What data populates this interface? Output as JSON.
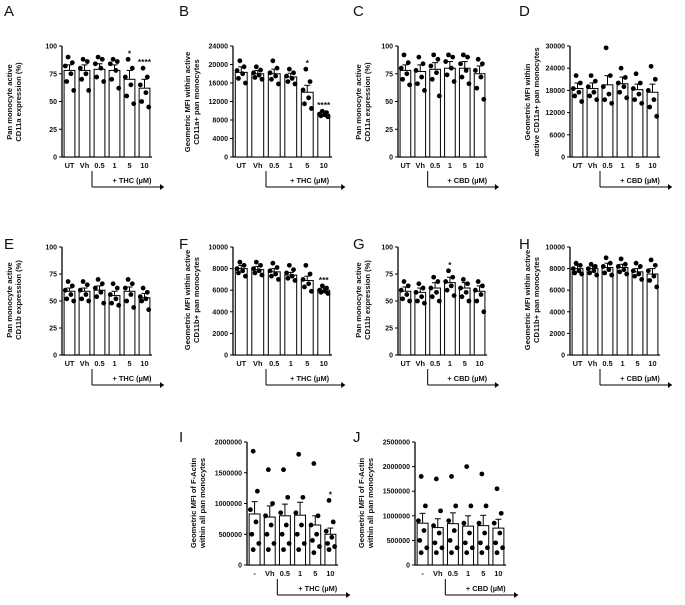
{
  "chart_data": [
    {
      "type": "bar",
      "panel": "A",
      "ylabel": "Pan monocyte active\nCD11a expression (%)",
      "yticks": [
        0,
        25,
        50,
        75,
        100
      ],
      "ylim": [
        0,
        100
      ],
      "categories": [
        "UT",
        "Vh",
        "0.5",
        "1",
        "5",
        "10"
      ],
      "treatment": "+ THC (µM)",
      "values": [
        78,
        78,
        79,
        78,
        70,
        62
      ],
      "errors": [
        5,
        5,
        5,
        5,
        8,
        8
      ],
      "points": [
        [
          90,
          85,
          82,
          75,
          68,
          60
        ],
        [
          88,
          86,
          80,
          75,
          70,
          60
        ],
        [
          90,
          88,
          84,
          80,
          72,
          68
        ],
        [
          88,
          86,
          84,
          78,
          70,
          62
        ],
        [
          88,
          80,
          72,
          65,
          55,
          48
        ],
        [
          80,
          72,
          65,
          58,
          50,
          45
        ]
      ],
      "annotations": [
        "",
        "",
        "",
        "",
        "*",
        "****"
      ]
    },
    {
      "type": "bar",
      "panel": "B",
      "ylabel": "Geometric MFI within active\nCD11a+ pan monocytes",
      "yticks": [
        0,
        4000,
        8000,
        12000,
        16000,
        20000,
        24000
      ],
      "ylim": [
        0,
        24000
      ],
      "categories": [
        "UT",
        "Vh",
        "0.5",
        "1",
        "5",
        "10"
      ],
      "treatment": "+ THC (µM)",
      "values": [
        18300,
        18000,
        18000,
        17300,
        14000,
        9200
      ],
      "errors": [
        1200,
        700,
        1000,
        800,
        1500,
        300
      ],
      "points": [
        [
          20800,
          19500,
          18700,
          18000,
          17000,
          16000
        ],
        [
          19500,
          18800,
          18200,
          17700,
          17200,
          16800
        ],
        [
          20800,
          19200,
          18200,
          17500,
          16800,
          15800
        ],
        [
          19000,
          18200,
          17500,
          17000,
          16300,
          15800
        ],
        [
          19000,
          16300,
          14500,
          12800,
          11500,
          10500
        ],
        [
          9900,
          9600,
          9300,
          9100,
          8900,
          8700
        ]
      ],
      "annotations": [
        "",
        "",
        "",
        "",
        "*",
        "****"
      ]
    },
    {
      "type": "bar",
      "panel": "C",
      "ylabel": "Pan monocyte active\nCD11a expression (%)",
      "yticks": [
        0,
        25,
        50,
        75,
        100
      ],
      "ylim": [
        0,
        100
      ],
      "categories": [
        "UT",
        "Vh",
        "0.5",
        "1",
        "5",
        "10"
      ],
      "treatment": "+ CBD (µM)",
      "values": [
        78,
        77,
        79,
        80,
        80,
        75
      ],
      "errors": [
        5,
        6,
        6,
        6,
        6,
        7
      ],
      "points": [
        [
          92,
          85,
          80,
          75,
          70,
          65
        ],
        [
          90,
          84,
          78,
          72,
          66,
          60
        ],
        [
          92,
          88,
          82,
          76,
          70,
          55
        ],
        [
          92,
          90,
          86,
          80,
          74,
          68
        ],
        [
          92,
          90,
          84,
          78,
          72,
          66
        ],
        [
          88,
          84,
          78,
          72,
          62,
          52
        ]
      ],
      "annotations": [
        "",
        "",
        "",
        "",
        "",
        ""
      ]
    },
    {
      "type": "bar",
      "panel": "D",
      "ylabel": "Geometric MFI within\nactive CD11a+ pan monocytes",
      "yticks": [
        0,
        6000,
        12000,
        18000,
        24000,
        30000
      ],
      "ylim": [
        0,
        30000
      ],
      "categories": [
        "UT",
        "Vh",
        "0.5",
        "1",
        "5",
        "10"
      ],
      "treatment": "+ CBD (µM)",
      "values": [
        18500,
        18500,
        19500,
        19800,
        18200,
        17500
      ],
      "errors": [
        1500,
        1500,
        2500,
        1800,
        1500,
        2200
      ],
      "points": [
        [
          22000,
          20000,
          18500,
          17500,
          16500,
          15000
        ],
        [
          22000,
          20500,
          19000,
          17500,
          16500,
          15500
        ],
        [
          29500,
          22000,
          19000,
          17000,
          15500,
          14500
        ],
        [
          24000,
          21500,
          20000,
          19000,
          17500,
          16000
        ],
        [
          22500,
          20000,
          18500,
          17000,
          15500,
          14500
        ],
        [
          24500,
          21000,
          18000,
          15500,
          13500,
          11000
        ]
      ],
      "annotations": [
        "",
        "",
        "",
        "",
        "",
        ""
      ]
    },
    {
      "type": "bar",
      "panel": "E",
      "ylabel": "Pan monocyte active\nCD11b expression (%)",
      "yticks": [
        0,
        25,
        50,
        75,
        100
      ],
      "ylim": [
        0,
        100
      ],
      "categories": [
        "UT",
        "Vh",
        "0.5",
        "1",
        "5",
        "10"
      ],
      "treatment": "+ THC (µM)",
      "values": [
        59,
        59,
        60,
        55,
        59,
        53
      ],
      "errors": [
        3,
        3,
        4,
        4,
        4,
        4
      ],
      "points": [
        [
          68,
          64,
          60,
          56,
          52,
          50
        ],
        [
          68,
          65,
          60,
          56,
          52,
          50
        ],
        [
          70,
          66,
          62,
          58,
          54,
          48
        ],
        [
          66,
          62,
          56,
          52,
          48,
          46
        ],
        [
          70,
          66,
          62,
          56,
          50,
          44
        ],
        [
          62,
          58,
          54,
          52,
          50,
          42
        ]
      ],
      "annotations": [
        "",
        "",
        "",
        "",
        "",
        ""
      ]
    },
    {
      "type": "bar",
      "panel": "F",
      "ylabel": "Geometric MFI within active\nCD11b+ pan monocytes",
      "yticks": [
        0,
        2000,
        4000,
        6000,
        8000,
        10000
      ],
      "ylim": [
        0,
        10000
      ],
      "categories": [
        "UT",
        "Vh",
        "0.5",
        "1",
        "5",
        "10"
      ],
      "treatment": "+ THC (µM)",
      "values": [
        8000,
        7900,
        7700,
        7400,
        6900,
        6000
      ],
      "errors": [
        300,
        300,
        300,
        250,
        400,
        200
      ],
      "points": [
        [
          8600,
          8300,
          8000,
          7800,
          7600,
          7300
        ],
        [
          8600,
          8300,
          8000,
          7800,
          7600,
          7400
        ],
        [
          8500,
          8100,
          7800,
          7500,
          7300,
          7000
        ],
        [
          8300,
          7900,
          7600,
          7300,
          7100,
          6900
        ],
        [
          8300,
          7500,
          7000,
          6600,
          6300,
          5900
        ],
        [
          6400,
          6200,
          6000,
          5900,
          5800,
          5700
        ]
      ],
      "annotations": [
        "",
        "",
        "",
        "",
        "",
        "***"
      ]
    },
    {
      "type": "bar",
      "panel": "G",
      "ylabel": "Pan monocyte active\nCD11b expression (%)",
      "yticks": [
        0,
        25,
        50,
        75,
        100
      ],
      "ylim": [
        0,
        100
      ],
      "categories": [
        "UT",
        "Vh",
        "0.5",
        "1",
        "5",
        "10"
      ],
      "treatment": "+ CBD (µM)",
      "values": [
        59,
        58,
        62,
        67,
        62,
        59
      ],
      "errors": [
        4,
        4,
        5,
        5,
        5,
        5
      ],
      "points": [
        [
          68,
          64,
          60,
          56,
          52,
          50
        ],
        [
          66,
          62,
          58,
          54,
          50,
          48
        ],
        [
          72,
          68,
          62,
          58,
          54,
          50
        ],
        [
          78,
          72,
          68,
          64,
          60,
          55
        ],
        [
          70,
          66,
          62,
          58,
          54,
          50
        ],
        [
          68,
          64,
          60,
          56,
          50,
          40
        ]
      ],
      "annotations": [
        "",
        "",
        "",
        "*",
        "",
        ""
      ]
    },
    {
      "type": "bar",
      "panel": "H",
      "ylabel": "Geometric MFI within active\nCD11b+ pan monocytes",
      "yticks": [
        0,
        2000,
        4000,
        6000,
        8000,
        10000
      ],
      "ylim": [
        0,
        10000
      ],
      "categories": [
        "UT",
        "Vh",
        "0.5",
        "1",
        "5",
        "10"
      ],
      "treatment": "+ CBD (µM)",
      "values": [
        8000,
        8000,
        8100,
        8100,
        7700,
        7500
      ],
      "errors": [
        300,
        300,
        400,
        300,
        300,
        500
      ],
      "points": [
        [
          8500,
          8300,
          8000,
          7800,
          7600,
          7500
        ],
        [
          8400,
          8200,
          8000,
          7800,
          7600,
          7400
        ],
        [
          9000,
          8500,
          8200,
          7900,
          7600,
          7400
        ],
        [
          8900,
          8400,
          8200,
          7900,
          7700,
          7500
        ],
        [
          8500,
          8200,
          7800,
          7500,
          7300,
          7000
        ],
        [
          8800,
          8300,
          7800,
          7300,
          6900,
          6300
        ]
      ],
      "annotations": [
        "",
        "",
        "",
        "",
        "",
        ""
      ]
    },
    {
      "type": "bar",
      "panel": "I",
      "ylabel": "Geometric MFI of F-Actin\nwithin all pan monocytes",
      "yticks": [
        0,
        500000,
        1000000,
        1500000,
        2000000
      ],
      "ylim": [
        0,
        2000000
      ],
      "categories": [
        "-",
        "Vh",
        "0.5",
        "1",
        "5",
        "10"
      ],
      "treatment": "+ THC (µM)",
      "values": [
        830000,
        780000,
        800000,
        810000,
        650000,
        500000
      ],
      "errors": [
        200000,
        180000,
        190000,
        210000,
        150000,
        100000
      ],
      "points": [
        [
          1850000,
          1200000,
          900000,
          700000,
          500000,
          350000,
          250000
        ],
        [
          1550000,
          1000000,
          800000,
          650000,
          500000,
          350000,
          250000
        ],
        [
          1550000,
          1100000,
          850000,
          650000,
          500000,
          350000,
          250000
        ],
        [
          1800000,
          1100000,
          850000,
          650000,
          500000,
          350000,
          250000
        ],
        [
          1650000,
          800000,
          650000,
          500000,
          400000,
          300000,
          200000
        ],
        [
          1050000,
          700000,
          550000,
          450000,
          350000,
          300000,
          250000
        ]
      ],
      "annotations": [
        "",
        "",
        "",
        "",
        "",
        "*"
      ]
    },
    {
      "type": "bar",
      "panel": "J",
      "ylabel": "Geometric MFI of F-Actin\nwithin all pan monocytes",
      "yticks": [
        0,
        500000,
        1000000,
        1500000,
        2000000,
        2500000
      ],
      "ylim": [
        0,
        2500000
      ],
      "categories": [
        "-",
        "Vh",
        "0.5",
        "1",
        "5",
        "10"
      ],
      "treatment": "+ CBD (µM)",
      "values": [
        850000,
        760000,
        840000,
        790000,
        800000,
        750000
      ],
      "errors": [
        200000,
        180000,
        220000,
        210000,
        210000,
        180000
      ],
      "points": [
        [
          1800000,
          1200000,
          900000,
          700000,
          500000,
          350000,
          250000
        ],
        [
          1750000,
          1100000,
          800000,
          650000,
          450000,
          350000,
          250000
        ],
        [
          1800000,
          1200000,
          900000,
          700000,
          500000,
          350000,
          250000
        ],
        [
          2000000,
          1200000,
          850000,
          650000,
          450000,
          350000,
          250000
        ],
        [
          1850000,
          1200000,
          850000,
          650000,
          450000,
          350000,
          250000
        ],
        [
          1550000,
          1050000,
          850000,
          650000,
          450000,
          350000,
          250000
        ]
      ],
      "annotations": [
        "",
        "",
        "",
        "",
        "",
        ""
      ]
    }
  ]
}
